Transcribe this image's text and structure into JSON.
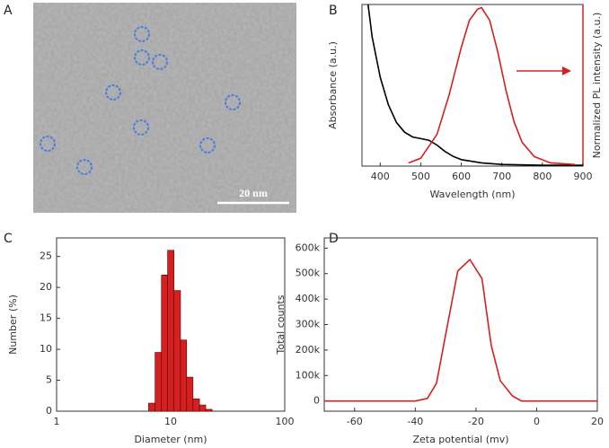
{
  "panels": [
    "A",
    "B",
    "C",
    "D"
  ],
  "image": {
    "scale_bar": "20 nm"
  },
  "chart_data": [
    {
      "type": "line",
      "xlabel": "Wavelength (nm)",
      "ylabel": "Absorbance (a.u.)",
      "y2label": "Normalized PL intensity (a.u.)",
      "xlim": [
        355,
        900
      ],
      "xticks": [
        400,
        500,
        600,
        700,
        800,
        900
      ],
      "ylim": [
        0,
        1
      ],
      "y2lim": [
        0,
        1.02
      ],
      "series": [
        {
          "color": "#000000",
          "x": [
            370,
            380,
            400,
            420,
            440,
            460,
            480,
            500,
            520,
            540,
            560,
            580,
            600,
            650,
            700,
            800,
            900
          ],
          "values": [
            1.0,
            0.8,
            0.55,
            0.38,
            0.27,
            0.21,
            0.18,
            0.17,
            0.16,
            0.13,
            0.09,
            0.06,
            0.04,
            0.02,
            0.01,
            0.005,
            0.005
          ]
        },
        {
          "color": "#d62020",
          "axis": "y2",
          "x": [
            470,
            500,
            540,
            570,
            600,
            620,
            640,
            650,
            670,
            690,
            710,
            730,
            750,
            780,
            820,
            880
          ],
          "values": [
            0.02,
            0.05,
            0.2,
            0.45,
            0.75,
            0.92,
            0.99,
            1.0,
            0.92,
            0.72,
            0.48,
            0.28,
            0.15,
            0.06,
            0.02,
            0.01
          ]
        }
      ]
    },
    {
      "type": "histogram",
      "xlabel": "Diameter (nm)",
      "ylabel": "Number (%)",
      "log_x": true,
      "color": "#d42020",
      "xlim": [
        1,
        100
      ],
      "xticks": [
        1,
        10,
        100
      ],
      "ylim": [
        0,
        28
      ],
      "yticks": [
        0,
        5,
        10,
        15,
        20,
        25
      ],
      "bins": [
        6.4,
        7.3,
        8.3,
        9.4,
        10.7,
        12.2,
        13.8,
        15.7,
        17.9,
        20.3,
        23.1
      ],
      "values": [
        1.3,
        9.5,
        22,
        26,
        19.5,
        11.5,
        5.5,
        2,
        1,
        0.3
      ]
    },
    {
      "type": "line",
      "xlabel": "Zeta potential (mv)",
      "ylabel": "Total counts",
      "xlim": [
        -70,
        20
      ],
      "xticks": [
        -60,
        -40,
        -20,
        0,
        20
      ],
      "ylim": [
        -40000,
        640000
      ],
      "yticks": [
        0,
        {
          "value": 100000,
          "label": "100k"
        },
        {
          "value": 200000,
          "label": "200k"
        },
        {
          "value": 300000,
          "label": "300k"
        },
        {
          "value": 400000,
          "label": "400k"
        },
        {
          "value": 500000,
          "label": "500k"
        },
        {
          "value": 600000,
          "label": "600k"
        }
      ],
      "series": [
        {
          "color": "#d62020",
          "x": [
            -70,
            -40,
            -36,
            -33,
            -30,
            -26,
            -22,
            -18,
            -15,
            -12,
            -8,
            -5,
            20
          ],
          "values": [
            0,
            0,
            10000,
            70000,
            260000,
            510000,
            555000,
            480000,
            220000,
            80000,
            20000,
            0,
            0
          ]
        }
      ]
    }
  ]
}
